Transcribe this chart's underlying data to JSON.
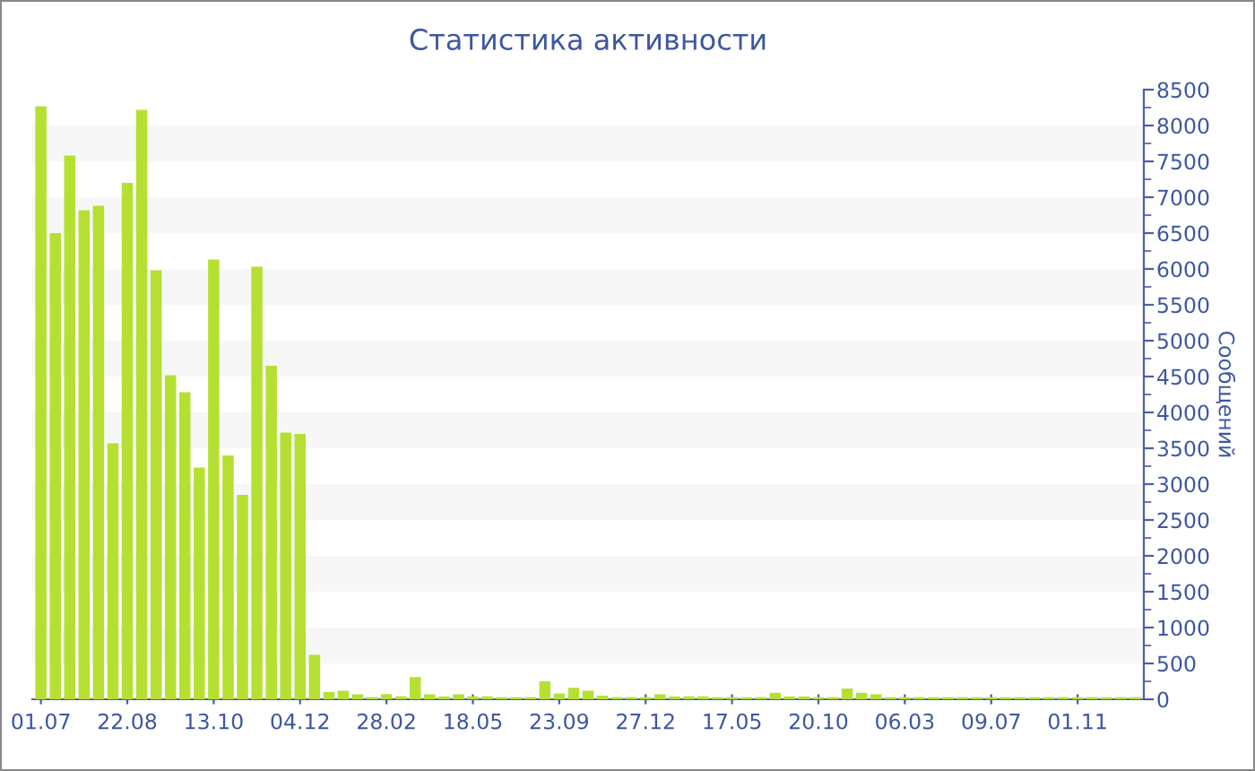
{
  "chart_data": {
    "type": "bar",
    "title": "Статистика активности",
    "ylabel": "Сообщений",
    "categories": [
      "01.07",
      null,
      null,
      null,
      null,
      null,
      "22.08",
      null,
      null,
      null,
      null,
      null,
      "13.10",
      null,
      null,
      null,
      null,
      null,
      "04.12",
      null,
      null,
      null,
      null,
      null,
      "28.02",
      null,
      null,
      null,
      null,
      null,
      "18.05",
      null,
      null,
      null,
      null,
      null,
      "23.09",
      null,
      null,
      null,
      null,
      null,
      "27.12",
      null,
      null,
      null,
      null,
      null,
      "17.05",
      null,
      null,
      null,
      null,
      null,
      "20.10",
      null,
      null,
      null,
      null,
      null,
      "06.03",
      null,
      null,
      null,
      null,
      null,
      "09.07",
      null,
      null,
      null,
      null,
      null,
      "01.11",
      null,
      null,
      null,
      null
    ],
    "values": [
      8270,
      6500,
      7580,
      6820,
      6880,
      3570,
      7200,
      8220,
      5980,
      4520,
      4280,
      3230,
      6130,
      3400,
      2850,
      6030,
      4650,
      3720,
      3700,
      620,
      100,
      120,
      70,
      30,
      70,
      40,
      310,
      70,
      40,
      70,
      40,
      40,
      30,
      30,
      30,
      250,
      80,
      160,
      120,
      50,
      30,
      30,
      30,
      70,
      40,
      40,
      40,
      30,
      30,
      30,
      30,
      90,
      40,
      40,
      30,
      30,
      150,
      90,
      70,
      30,
      30,
      30,
      30,
      30,
      30,
      30,
      30,
      30,
      30,
      30,
      30,
      30,
      30,
      30,
      30,
      30,
      30
    ],
    "color": "#b5e033",
    "ylim": [
      0,
      8500
    ],
    "yticks": [
      0,
      500,
      1000,
      1500,
      2000,
      2500,
      3000,
      3500,
      4000,
      4500,
      5000,
      5500,
      6000,
      6500,
      7000,
      7500,
      8000,
      8500
    ],
    "bands": [
      {
        "axis": "y",
        "from": 500,
        "to": 1000,
        "color": "#f7f7f7"
      },
      {
        "axis": "y",
        "from": 1500,
        "to": 2000,
        "color": "#f7f7f7"
      },
      {
        "axis": "y",
        "from": 2500,
        "to": 3000,
        "color": "#f7f7f7"
      },
      {
        "axis": "y",
        "from": 3500,
        "to": 4000,
        "color": "#f7f7f7"
      },
      {
        "axis": "y",
        "from": 4500,
        "to": 5000,
        "color": "#f7f7f7"
      },
      {
        "axis": "y",
        "from": 5500,
        "to": 6000,
        "color": "#f7f7f7"
      },
      {
        "axis": "y",
        "from": 6500,
        "to": 7000,
        "color": "#f7f7f7"
      },
      {
        "axis": "y",
        "from": 7500,
        "to": 8000,
        "color": "#f7f7f7"
      }
    ]
  }
}
